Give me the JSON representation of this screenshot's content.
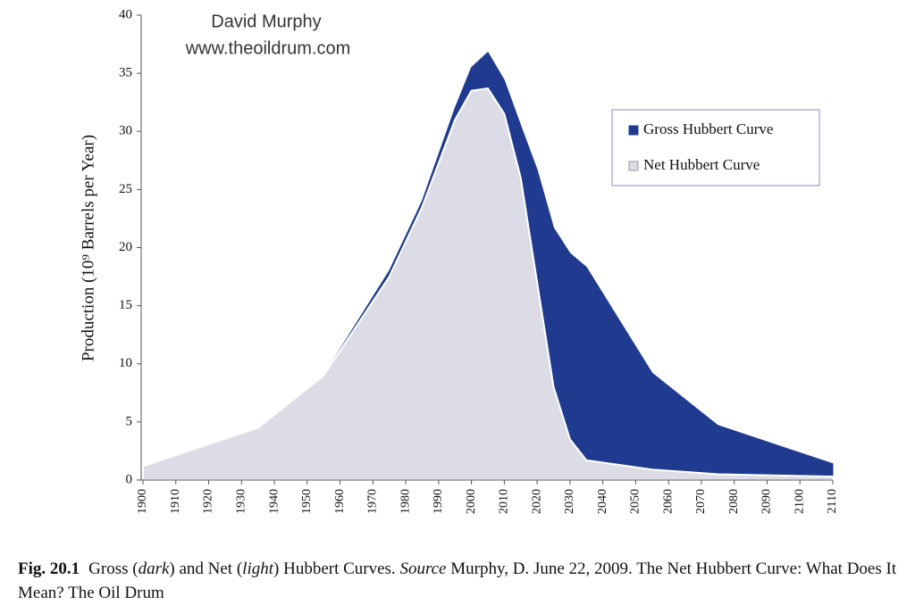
{
  "chart_data": {
    "type": "area",
    "annotations": [
      "David Murphy",
      "www.theoildrum.com"
    ],
    "y_label": "Production (10⁹ Barrels per Year)",
    "x": [
      1900,
      1935,
      1955,
      1975,
      1985,
      1995,
      2000,
      2005,
      2010,
      2015,
      2020,
      2025,
      2030,
      2035,
      2055,
      2075,
      2110
    ],
    "series": [
      {
        "name": "Gross Hubbert Curve",
        "color": "#1f3a8f",
        "values": [
          1.2,
          4.5,
          9,
          18,
          24,
          32,
          35.5,
          36.8,
          34.4,
          30.5,
          26.7,
          21.7,
          19.5,
          18.3,
          9.2,
          4.7,
          1.4
        ]
      },
      {
        "name": "Net Hubbert Curve",
        "color": "#dcdce6",
        "values": [
          1.2,
          4.5,
          9,
          17.5,
          23.5,
          31,
          33.5,
          33.7,
          31.5,
          26,
          17,
          8,
          3.5,
          1.7,
          0.9,
          0.5,
          0.3
        ]
      }
    ],
    "xlim": [
      1900,
      2110
    ],
    "xticks": [
      1900,
      1910,
      1920,
      1930,
      1940,
      1950,
      1960,
      1970,
      1980,
      1990,
      2000,
      2010,
      2020,
      2030,
      2040,
      2050,
      2060,
      2070,
      2080,
      2090,
      2100,
      2110
    ],
    "ylim": [
      0,
      40
    ],
    "yticks": [
      0,
      5,
      10,
      15,
      20,
      25,
      30,
      35,
      40
    ],
    "legend": "upper right"
  },
  "caption": {
    "label": "Fig. 20.1",
    "parts": [
      {
        "text": "Gross (",
        "italic": false
      },
      {
        "text": "dark",
        "italic": true
      },
      {
        "text": ") and Net (",
        "italic": false
      },
      {
        "text": "light",
        "italic": true
      },
      {
        "text": ") Hubbert Curves. ",
        "italic": false
      },
      {
        "text": "Source",
        "italic": true
      },
      {
        "text": " Murphy, D. June 22, 2009. The Net Hubbert Curve: What Does It Mean? The Oil Drum",
        "italic": false
      }
    ]
  }
}
